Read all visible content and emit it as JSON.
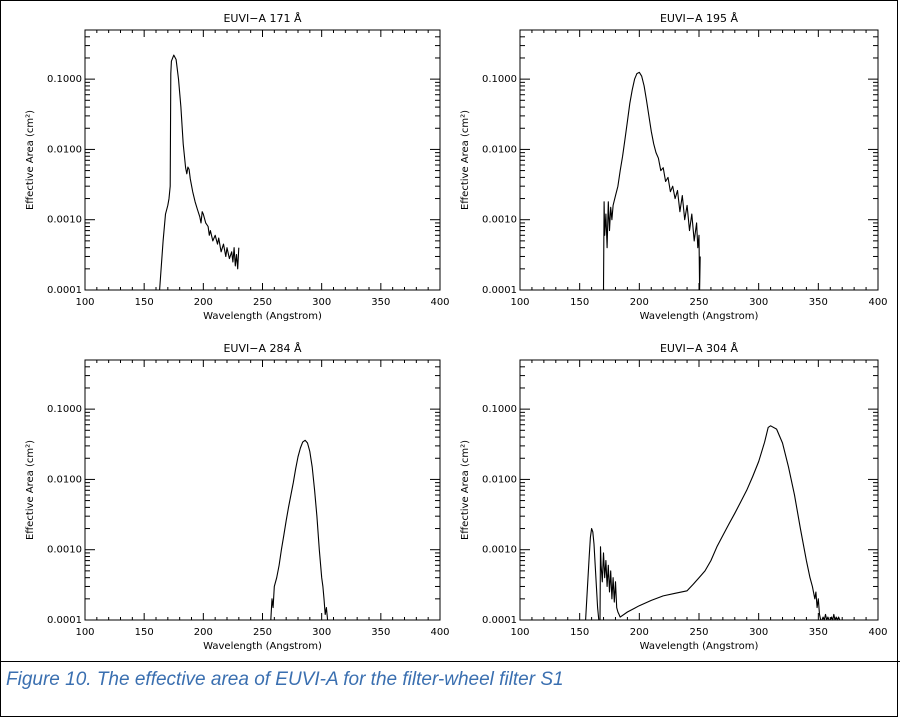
{
  "figure": {
    "caption": "Figure 10.  The effective area of EUVI-A for the filter-wheel filter S1"
  },
  "chart_data": [
    {
      "type": "line",
      "title": "EUVI−A 171 Å",
      "xlabel": "Wavelength (Angstrom)",
      "ylabel": "Effective Area (cm²)",
      "xlim": [
        100,
        400
      ],
      "ylim": [
        0.0001,
        0.5
      ],
      "yscale": "log",
      "xticks": [
        "100",
        "150",
        "200",
        "250",
        "300",
        "350",
        "400"
      ],
      "yticks": [
        "0.0001",
        "0.0010",
        "0.0100",
        "0.1000"
      ],
      "series": [
        {
          "x": [
            163,
            166,
            168,
            170,
            171,
            172,
            172.5,
            173,
            175,
            177,
            179,
            181,
            183,
            185,
            186,
            187,
            188,
            189,
            191,
            193,
            195,
            197,
            198,
            199,
            200,
            202,
            204,
            205,
            206,
            208,
            210,
            212,
            213,
            215,
            217,
            219,
            220,
            222,
            224,
            225,
            226,
            227,
            228,
            229,
            230
          ],
          "y": [
            0.0001,
            0.0005,
            0.0012,
            0.0016,
            0.002,
            0.003,
            0.12,
            0.18,
            0.22,
            0.19,
            0.1,
            0.04,
            0.012,
            0.0055,
            0.0045,
            0.0056,
            0.0052,
            0.0038,
            0.0025,
            0.0018,
            0.0014,
            0.0011,
            0.0009,
            0.0013,
            0.0012,
            0.0009,
            0.0008,
            0.0006,
            0.0007,
            0.0005,
            0.0006,
            0.00045,
            0.00055,
            0.00035,
            0.00045,
            0.0003,
            0.0004,
            0.00028,
            0.00035,
            0.00025,
            0.0004,
            0.00022,
            0.00032,
            0.0002,
            0.0004
          ]
        }
      ]
    },
    {
      "type": "line",
      "title": "EUVI−A 195 Å",
      "xlabel": "Wavelength (Angstrom)",
      "ylabel": "Effective Area (cm²)",
      "xlim": [
        100,
        400
      ],
      "ylim": [
        0.0001,
        0.5
      ],
      "yscale": "log",
      "xticks": [
        "100",
        "150",
        "200",
        "250",
        "300",
        "350",
        "400"
      ],
      "yticks": [
        "0.0001",
        "0.0010",
        "0.0100",
        "0.1000"
      ],
      "series": [
        {
          "x": [
            170,
            170.5,
            171,
            172,
            173,
            174,
            175,
            176,
            177,
            178,
            180,
            182,
            184,
            186,
            188,
            190,
            192,
            194,
            196,
            198,
            200,
            202,
            204,
            206,
            208,
            210,
            212,
            214,
            216,
            218,
            220,
            222,
            224,
            226,
            228,
            230,
            232,
            234,
            236,
            238,
            240,
            242,
            244,
            246,
            248,
            249,
            250,
            250.5,
            251
          ],
          "y": [
            0.0001,
            0.0018,
            0.0006,
            0.0012,
            0.0004,
            0.0018,
            0.0007,
            0.0015,
            0.001,
            0.0016,
            0.0022,
            0.003,
            0.005,
            0.008,
            0.014,
            0.025,
            0.045,
            0.07,
            0.1,
            0.12,
            0.125,
            0.11,
            0.08,
            0.05,
            0.03,
            0.018,
            0.012,
            0.009,
            0.0075,
            0.005,
            0.0055,
            0.0035,
            0.004,
            0.0025,
            0.003,
            0.002,
            0.0026,
            0.0013,
            0.0022,
            0.001,
            0.0016,
            0.0007,
            0.0012,
            0.0005,
            0.0009,
            0.0004,
            0.0006,
            0.0001,
            0.0003
          ]
        }
      ]
    },
    {
      "type": "line",
      "title": "EUVI−A 284 Å",
      "xlabel": "Wavelength (Angstrom)",
      "ylabel": "Effective Area (cm²)",
      "xlim": [
        100,
        400
      ],
      "ylim": [
        0.0001,
        0.5
      ],
      "yscale": "log",
      "xticks": [
        "100",
        "150",
        "200",
        "250",
        "300",
        "350",
        "400"
      ],
      "yticks": [
        "0.0001",
        "0.0010",
        "0.0100",
        "0.1000"
      ],
      "series": [
        {
          "x": [
            257,
            258,
            259,
            260,
            262,
            264,
            266,
            268,
            270,
            272,
            274,
            276,
            278,
            280,
            282,
            284,
            286,
            288,
            290,
            292,
            294,
            296,
            298,
            300,
            301,
            302,
            303,
            304,
            305
          ],
          "y": [
            0.0001,
            0.0002,
            0.00015,
            0.0003,
            0.0004,
            0.0006,
            0.001,
            0.0016,
            0.0026,
            0.004,
            0.006,
            0.009,
            0.014,
            0.021,
            0.028,
            0.034,
            0.036,
            0.033,
            0.025,
            0.015,
            0.007,
            0.003,
            0.001,
            0.0004,
            0.0003,
            0.0002,
            0.00012,
            0.00015,
            0.0001
          ]
        }
      ]
    },
    {
      "type": "line",
      "title": "EUVI−A 304 Å",
      "xlabel": "Wavelength (Angstrom)",
      "ylabel": "Effective Area (cm²)",
      "xlim": [
        100,
        400
      ],
      "ylim": [
        0.0001,
        0.5
      ],
      "yscale": "log",
      "xticks": [
        "100",
        "150",
        "200",
        "250",
        "300",
        "350",
        "400"
      ],
      "yticks": [
        "0.0001",
        "0.0010",
        "0.0100",
        "0.1000"
      ],
      "series": [
        {
          "x": [
            155,
            156,
            157,
            158,
            159,
            160,
            161,
            162,
            163,
            164,
            165,
            166,
            167,
            167.5,
            168,
            169,
            170,
            171,
            172,
            173,
            174,
            175,
            176,
            177,
            178,
            179,
            180,
            181,
            182,
            183,
            184,
            190,
            200,
            210,
            220,
            230,
            240,
            245,
            250,
            255,
            260,
            265,
            270,
            275,
            280,
            285,
            290,
            295,
            300,
            305,
            308,
            310,
            315,
            320,
            325,
            330,
            335,
            340,
            343,
            345,
            347,
            348,
            349,
            350,
            351,
            352
          ],
          "y": [
            0.0001,
            0.0002,
            0.0004,
            0.0008,
            0.0015,
            0.002,
            0.0018,
            0.0012,
            0.0006,
            0.0003,
            0.00015,
            0.0001,
            0.0001,
            0.0011,
            0.0006,
            0.00035,
            0.0009,
            0.0004,
            0.0007,
            0.0003,
            0.0006,
            0.00025,
            0.0005,
            0.0002,
            0.0004,
            0.00018,
            0.00035,
            0.00015,
            0.00013,
            0.00012,
            0.00011,
            0.00013,
            0.00016,
            0.00019,
            0.00022,
            0.00024,
            0.00026,
            0.00032,
            0.0004,
            0.0005,
            0.0007,
            0.0011,
            0.0016,
            0.0023,
            0.0033,
            0.0048,
            0.007,
            0.011,
            0.018,
            0.034,
            0.055,
            0.058,
            0.052,
            0.033,
            0.015,
            0.006,
            0.002,
            0.0007,
            0.0004,
            0.0003,
            0.0002,
            0.00025,
            0.00015,
            0.0002,
            0.00012,
            0.0001
          ]
        },
        {
          "x": [
            353,
            354,
            355,
            356,
            357,
            358,
            359,
            360,
            361,
            362,
            363,
            364,
            365,
            366,
            367,
            368
          ],
          "y": [
            0.0001,
            0.00011,
            0.0001,
            0.00012,
            0.0001,
            0.00011,
            0.0001,
            0.0001,
            0.00011,
            0.0001,
            0.00012,
            0.0001,
            0.00011,
            0.0001,
            0.00011,
            0.0001
          ]
        }
      ]
    }
  ]
}
